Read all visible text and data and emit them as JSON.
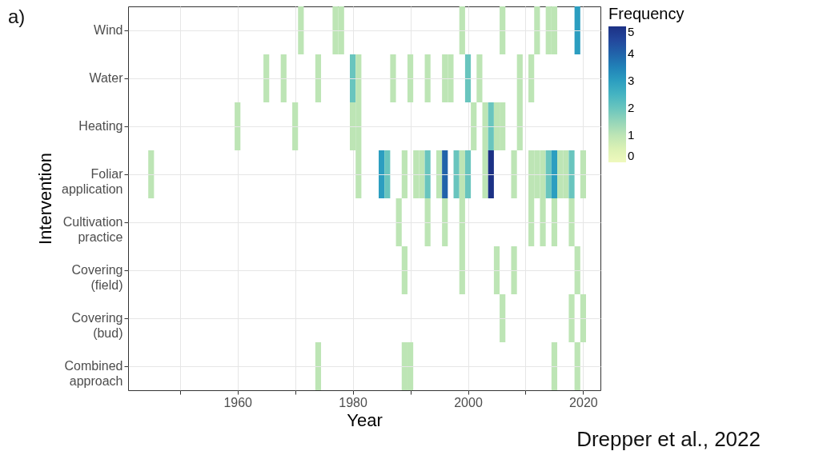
{
  "chart_data": {
    "type": "heatmap",
    "xlabel": "Year",
    "ylabel": "Intervention",
    "legend_title": "Frequency",
    "annotations": [
      "a)",
      "Drepper et al., 2022"
    ],
    "x": [
      1945,
      1946,
      1947,
      1948,
      1949,
      1950,
      1951,
      1952,
      1953,
      1954,
      1955,
      1956,
      1957,
      1958,
      1959,
      1960,
      1961,
      1962,
      1963,
      1964,
      1965,
      1966,
      1967,
      1968,
      1969,
      1970,
      1971,
      1972,
      1973,
      1974,
      1975,
      1976,
      1977,
      1978,
      1979,
      1980,
      1981,
      1982,
      1983,
      1984,
      1985,
      1986,
      1987,
      1988,
      1989,
      1990,
      1991,
      1992,
      1993,
      1994,
      1995,
      1996,
      1997,
      1998,
      1999,
      2000,
      2001,
      2002,
      2003,
      2004,
      2005,
      2006,
      2007,
      2008,
      2009,
      2010,
      2011,
      2012,
      2013,
      2014,
      2015,
      2016,
      2017,
      2018,
      2019,
      2020
    ],
    "y_categories": [
      "Wind",
      "Water",
      "Heating",
      "Foliar\napplication",
      "Cultivation\npractice",
      "Covering\n(field)",
      "Covering\n(bud)",
      "Combined\napproach"
    ],
    "cells": [
      [
        null,
        null,
        null,
        null,
        null,
        null,
        null,
        null,
        null,
        null,
        null,
        null,
        null,
        null,
        null,
        null,
        null,
        null,
        null,
        null,
        null,
        null,
        null,
        null,
        null,
        null,
        1,
        null,
        null,
        null,
        null,
        null,
        1,
        1,
        null,
        null,
        null,
        null,
        null,
        null,
        null,
        null,
        null,
        null,
        null,
        null,
        null,
        null,
        null,
        null,
        null,
        null,
        null,
        null,
        1,
        null,
        null,
        null,
        null,
        null,
        null,
        1,
        null,
        null,
        null,
        null,
        null,
        1,
        null,
        1,
        1,
        null,
        null,
        null,
        3,
        null
      ],
      [
        null,
        null,
        null,
        null,
        null,
        null,
        null,
        null,
        null,
        null,
        null,
        null,
        null,
        null,
        null,
        null,
        null,
        null,
        null,
        null,
        1,
        null,
        null,
        1,
        null,
        null,
        null,
        null,
        null,
        1,
        null,
        null,
        null,
        null,
        null,
        2,
        1,
        null,
        null,
        null,
        null,
        null,
        1,
        null,
        null,
        1,
        null,
        null,
        1,
        null,
        null,
        1,
        1,
        null,
        null,
        2,
        null,
        1,
        null,
        null,
        null,
        null,
        null,
        null,
        1,
        null,
        1,
        null,
        null,
        null,
        null,
        null,
        null,
        null,
        null,
        null
      ],
      [
        null,
        null,
        null,
        null,
        null,
        null,
        null,
        null,
        null,
        null,
        null,
        null,
        null,
        null,
        null,
        1,
        null,
        null,
        null,
        null,
        null,
        null,
        null,
        null,
        null,
        1,
        null,
        null,
        null,
        null,
        null,
        null,
        null,
        null,
        null,
        1,
        1,
        null,
        null,
        null,
        null,
        null,
        null,
        null,
        null,
        null,
        null,
        null,
        null,
        null,
        null,
        null,
        null,
        null,
        null,
        null,
        1,
        null,
        1,
        2,
        1,
        1,
        null,
        null,
        1,
        null,
        null,
        null,
        null,
        null,
        null,
        null,
        null,
        null,
        null,
        null
      ],
      [
        1,
        null,
        null,
        null,
        null,
        null,
        null,
        null,
        null,
        null,
        null,
        null,
        null,
        null,
        null,
        null,
        null,
        null,
        null,
        null,
        null,
        null,
        null,
        null,
        null,
        null,
        null,
        null,
        null,
        null,
        null,
        null,
        null,
        null,
        null,
        null,
        1,
        null,
        null,
        null,
        3,
        2,
        null,
        null,
        1,
        null,
        1,
        1,
        2,
        null,
        1,
        4,
        null,
        2,
        1,
        2,
        null,
        null,
        1,
        5,
        null,
        null,
        null,
        1,
        null,
        null,
        1,
        1,
        1,
        2,
        3,
        1,
        1,
        2,
        null,
        1
      ],
      [
        null,
        null,
        null,
        null,
        null,
        null,
        null,
        null,
        null,
        null,
        null,
        null,
        null,
        null,
        null,
        null,
        null,
        null,
        null,
        null,
        null,
        null,
        null,
        null,
        null,
        null,
        null,
        null,
        null,
        null,
        null,
        null,
        null,
        null,
        null,
        null,
        null,
        null,
        null,
        null,
        null,
        null,
        null,
        1,
        null,
        null,
        null,
        null,
        1,
        null,
        null,
        1,
        null,
        null,
        1,
        null,
        null,
        null,
        null,
        null,
        null,
        null,
        null,
        null,
        null,
        null,
        1,
        null,
        1,
        null,
        1,
        null,
        null,
        1,
        null,
        null
      ],
      [
        null,
        null,
        null,
        null,
        null,
        null,
        null,
        null,
        null,
        null,
        null,
        null,
        null,
        null,
        null,
        null,
        null,
        null,
        null,
        null,
        null,
        null,
        null,
        null,
        null,
        null,
        null,
        null,
        null,
        null,
        null,
        null,
        null,
        null,
        null,
        null,
        null,
        null,
        null,
        null,
        null,
        null,
        null,
        null,
        1,
        null,
        null,
        null,
        null,
        null,
        null,
        null,
        null,
        null,
        1,
        null,
        null,
        null,
        null,
        null,
        1,
        null,
        null,
        1,
        null,
        null,
        null,
        null,
        null,
        null,
        null,
        null,
        null,
        null,
        1,
        null
      ],
      [
        null,
        null,
        null,
        null,
        null,
        null,
        null,
        null,
        null,
        null,
        null,
        null,
        null,
        null,
        null,
        null,
        null,
        null,
        null,
        null,
        null,
        null,
        null,
        null,
        null,
        null,
        null,
        null,
        null,
        null,
        null,
        null,
        null,
        null,
        null,
        null,
        null,
        null,
        null,
        null,
        null,
        null,
        null,
        null,
        null,
        null,
        null,
        null,
        null,
        null,
        null,
        null,
        null,
        null,
        null,
        null,
        null,
        null,
        null,
        null,
        null,
        1,
        null,
        null,
        null,
        null,
        null,
        null,
        null,
        null,
        null,
        null,
        null,
        1,
        null,
        1
      ],
      [
        null,
        null,
        null,
        null,
        null,
        null,
        null,
        null,
        null,
        null,
        null,
        null,
        null,
        null,
        null,
        null,
        null,
        null,
        null,
        null,
        null,
        null,
        null,
        null,
        null,
        null,
        null,
        null,
        null,
        1,
        null,
        null,
        null,
        null,
        null,
        null,
        null,
        null,
        null,
        null,
        null,
        null,
        null,
        null,
        1,
        1,
        null,
        null,
        null,
        null,
        null,
        null,
        null,
        null,
        null,
        null,
        null,
        null,
        null,
        null,
        null,
        null,
        null,
        null,
        null,
        null,
        null,
        null,
        null,
        null,
        1,
        null,
        null,
        null,
        1,
        null
      ]
    ],
    "xlim": [
      1941,
      2023
    ],
    "xticks": [
      {
        "value": 1950,
        "label": null
      },
      1960,
      {
        "value": 1970,
        "label": null
      },
      1980,
      {
        "value": 1990,
        "label": null
      },
      2000,
      {
        "value": 2010,
        "label": null
      },
      2020
    ],
    "clim": [
      0,
      5
    ],
    "cticks": [
      0,
      1,
      2,
      3,
      4,
      5
    ],
    "grid": true
  }
}
